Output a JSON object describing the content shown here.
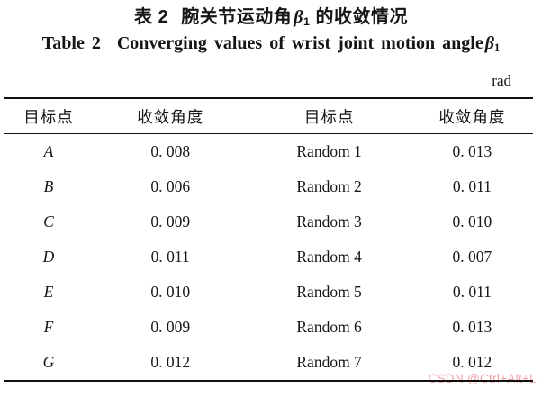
{
  "caption": {
    "zh": {
      "label": "表 2",
      "before_symbol": "腕关节运动角",
      "symbol": "β",
      "subscript": "1",
      "after_symbol": " 的收敛情况"
    },
    "en": {
      "label": "Table 2",
      "text": "Converging values of wrist joint motion angle",
      "symbol": "β",
      "subscript": "1"
    },
    "unit": "rad"
  },
  "table": {
    "headers": [
      "目标点",
      "收敛角度",
      "目标点",
      "收敛角度"
    ],
    "rows": [
      [
        "A",
        "0. 008",
        "Random 1",
        "0. 013"
      ],
      [
        "B",
        "0. 006",
        "Random 2",
        "0. 011"
      ],
      [
        "C",
        "0. 009",
        "Random 3",
        "0. 010"
      ],
      [
        "D",
        "0. 011",
        "Random 4",
        "0. 007"
      ],
      [
        "E",
        "0. 010",
        "Random 5",
        "0. 011"
      ],
      [
        "F",
        "0. 009",
        "Random 6",
        "0. 013"
      ],
      [
        "G",
        "0. 012",
        "Random 7",
        "0. 012"
      ]
    ]
  },
  "watermark": {
    "text": "CSDN @Ctrl+Alt+L",
    "color": "#f0a2a8"
  }
}
